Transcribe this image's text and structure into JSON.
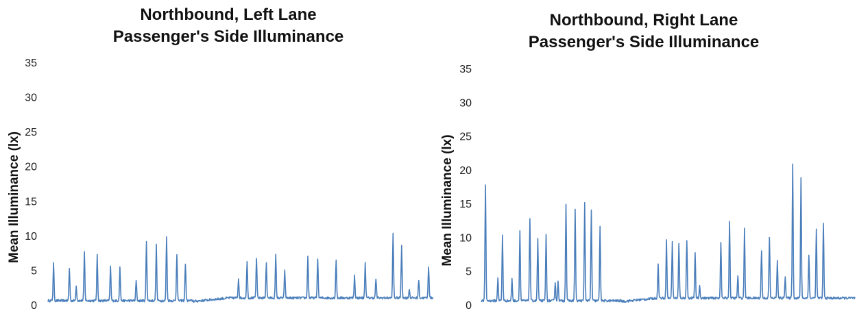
{
  "chart_data": [
    {
      "type": "line",
      "title": [
        "Northbound, Left Lane",
        "Passenger's Side Illuminance"
      ],
      "ylabel": "Mean Illuminance (lx)",
      "xlabel": "",
      "ylim": [
        0,
        35
      ],
      "yticks": [
        "0",
        "5",
        "10",
        "15",
        "20",
        "25",
        "30",
        "35"
      ],
      "grid": false,
      "color": "#4a7ebb",
      "peaks": [
        [
          1.3,
          6
        ],
        [
          5.0,
          5.3
        ],
        [
          6.6,
          2.7
        ],
        [
          8.5,
          7.6
        ],
        [
          11.5,
          7.1
        ],
        [
          14.6,
          5.5
        ],
        [
          16.8,
          5.4
        ],
        [
          20.6,
          3.5
        ],
        [
          23.0,
          9.2
        ],
        [
          25.3,
          8.6
        ],
        [
          27.7,
          9.7
        ],
        [
          30.1,
          7.4
        ],
        [
          32.1,
          6.0
        ],
        [
          44.5,
          3.8
        ],
        [
          46.5,
          6.4
        ],
        [
          48.7,
          6.8
        ],
        [
          51.0,
          6.1
        ],
        [
          53.2,
          7.2
        ],
        [
          55.3,
          5.0
        ],
        [
          60.7,
          7.1
        ],
        [
          63.0,
          6.8
        ],
        [
          67.3,
          6.5
        ],
        [
          71.6,
          4.2
        ],
        [
          74.1,
          6.1
        ],
        [
          76.6,
          3.8
        ],
        [
          80.6,
          10.4
        ],
        [
          82.6,
          8.6
        ],
        [
          84.4,
          2.2
        ],
        [
          86.6,
          3.6
        ],
        [
          88.9,
          5.6
        ]
      ]
    },
    {
      "type": "line",
      "title": [
        "Northbound, Right Lane",
        "Passenger's Side Illuminance"
      ],
      "ylabel": "Mean Illuminance (lx)",
      "xlabel": "",
      "ylim": [
        0,
        35
      ],
      "yticks": [
        "0",
        "5",
        "10",
        "15",
        "20",
        "25",
        "30",
        "35"
      ],
      "grid": false,
      "color": "#4a7ebb",
      "peaks": [
        [
          1.0,
          17.7
        ],
        [
          4.0,
          4.0
        ],
        [
          5.1,
          10.3
        ],
        [
          7.4,
          3.8
        ],
        [
          9.3,
          10.9
        ],
        [
          11.7,
          12.6
        ],
        [
          13.6,
          9.8
        ],
        [
          15.6,
          10.3
        ],
        [
          17.8,
          3.4
        ],
        [
          18.5,
          3.6
        ],
        [
          20.4,
          15.0
        ],
        [
          22.6,
          14.1
        ],
        [
          24.9,
          15.1
        ],
        [
          26.5,
          14.1
        ],
        [
          28.6,
          11.7
        ],
        [
          42.6,
          6.0
        ],
        [
          44.6,
          9.5
        ],
        [
          46.0,
          9.5
        ],
        [
          47.6,
          9.0
        ],
        [
          49.5,
          9.6
        ],
        [
          51.5,
          7.6
        ],
        [
          52.6,
          2.8
        ],
        [
          57.7,
          9.4
        ],
        [
          59.8,
          12.5
        ],
        [
          61.8,
          4.3
        ],
        [
          63.4,
          11.2
        ],
        [
          67.5,
          8.0
        ],
        [
          69.4,
          10.0
        ],
        [
          71.3,
          6.5
        ],
        [
          73.2,
          4.3
        ],
        [
          75.0,
          20.8
        ],
        [
          77.0,
          18.8
        ],
        [
          78.9,
          7.5
        ],
        [
          80.7,
          11.2
        ],
        [
          82.4,
          12.1
        ]
      ]
    }
  ]
}
